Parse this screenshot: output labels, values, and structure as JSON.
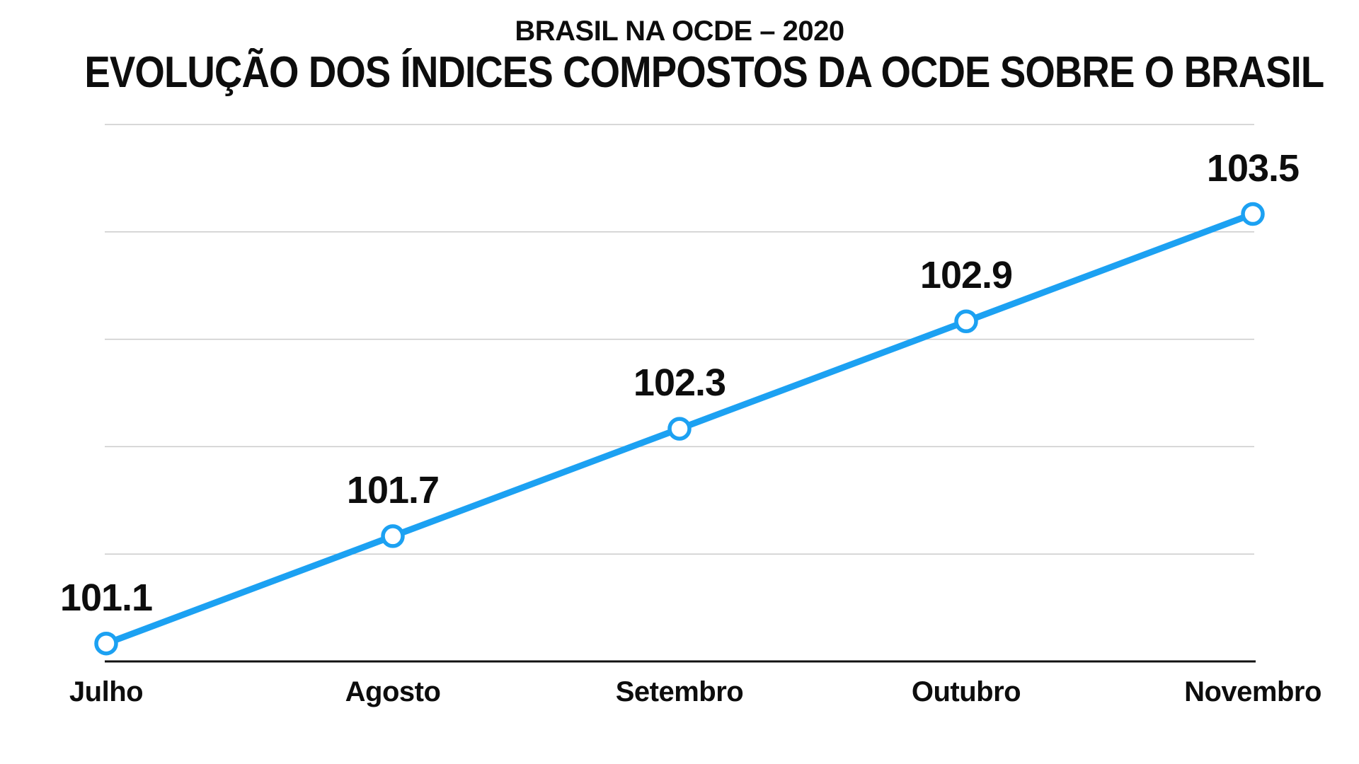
{
  "header": {
    "supertitle": "BRASIL NA OCDE – 2020",
    "title": "EVOLUÇÃO DOS ÍNDICES COMPOSTOS DA OCDE SOBRE O BRASIL"
  },
  "colors": {
    "background": "#ffffff",
    "line": "#1ca1f2",
    "marker_fill": "#ffffff",
    "gridline": "#cbcbcb",
    "axis": "#111111",
    "text": "#0d0d0d"
  },
  "chart_data": {
    "type": "line",
    "supertitle": "BRASIL NA OCDE – 2020",
    "title": "EVOLUÇÃO DOS ÍNDICES COMPOSTOS DA OCDE SOBRE O BRASIL",
    "categories": [
      "Julho",
      "Agosto",
      "Setembro",
      "Outubro",
      "Novembro"
    ],
    "values": [
      101.1,
      101.7,
      102.3,
      102.9,
      103.5
    ],
    "data_labels": [
      "101.1",
      "101.7",
      "102.3",
      "102.9",
      "103.5"
    ],
    "xlabel": "",
    "ylabel": "",
    "ylim": [
      101.0,
      104.0
    ],
    "gridline_step": 0.6,
    "grid": "horizontal-light",
    "baseline_axis": true,
    "legend": "none",
    "marker": "open-circle"
  }
}
